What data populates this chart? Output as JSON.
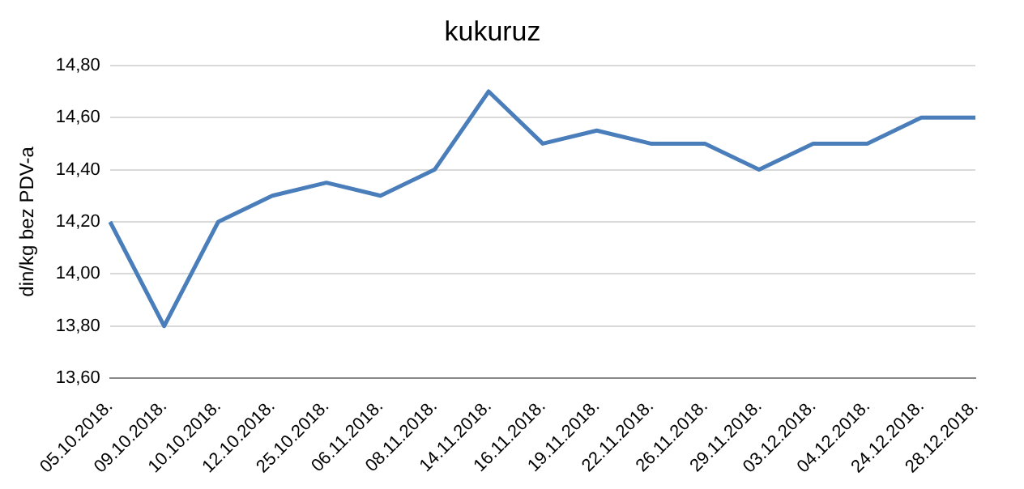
{
  "chart_data": {
    "type": "line",
    "title": "kukuruz",
    "ylabel": "din/kg bez PDV-a",
    "categories": [
      "05.10.2018.",
      "09.10.2018.",
      "10.10.2018.",
      "12.10.2018.",
      "25.10.2018.",
      "06.11.2018.",
      "08.11.2018.",
      "14.11.2018.",
      "16.11.2018.",
      "19.11.2018.",
      "22.11.2018.",
      "26.11.2018.",
      "29.11.2018.",
      "03.12.2018.",
      "04.12.2018.",
      "24.12.2018.",
      "28.12.2018."
    ],
    "series": [
      {
        "color": "#4a7ebb",
        "values": [
          14.2,
          13.8,
          14.2,
          14.3,
          14.35,
          14.3,
          14.4,
          14.7,
          14.5,
          14.55,
          14.5,
          14.5,
          14.4,
          14.5,
          14.5,
          14.6,
          14.6
        ]
      }
    ],
    "ylim": [
      13.6,
      14.8
    ],
    "yticks": [
      {
        "value": 13.6,
        "label": "13,60"
      },
      {
        "value": 13.8,
        "label": "13,80"
      },
      {
        "value": 14,
        "label": "14,00"
      },
      {
        "value": 14.2,
        "label": "14,20"
      },
      {
        "value": 14.4,
        "label": "14,40"
      },
      {
        "value": 14.6,
        "label": "14,60"
      },
      {
        "value": 14.8,
        "label": "14,80"
      }
    ],
    "grid": "y",
    "legend": false,
    "marker": "none",
    "line_style": "solid"
  }
}
